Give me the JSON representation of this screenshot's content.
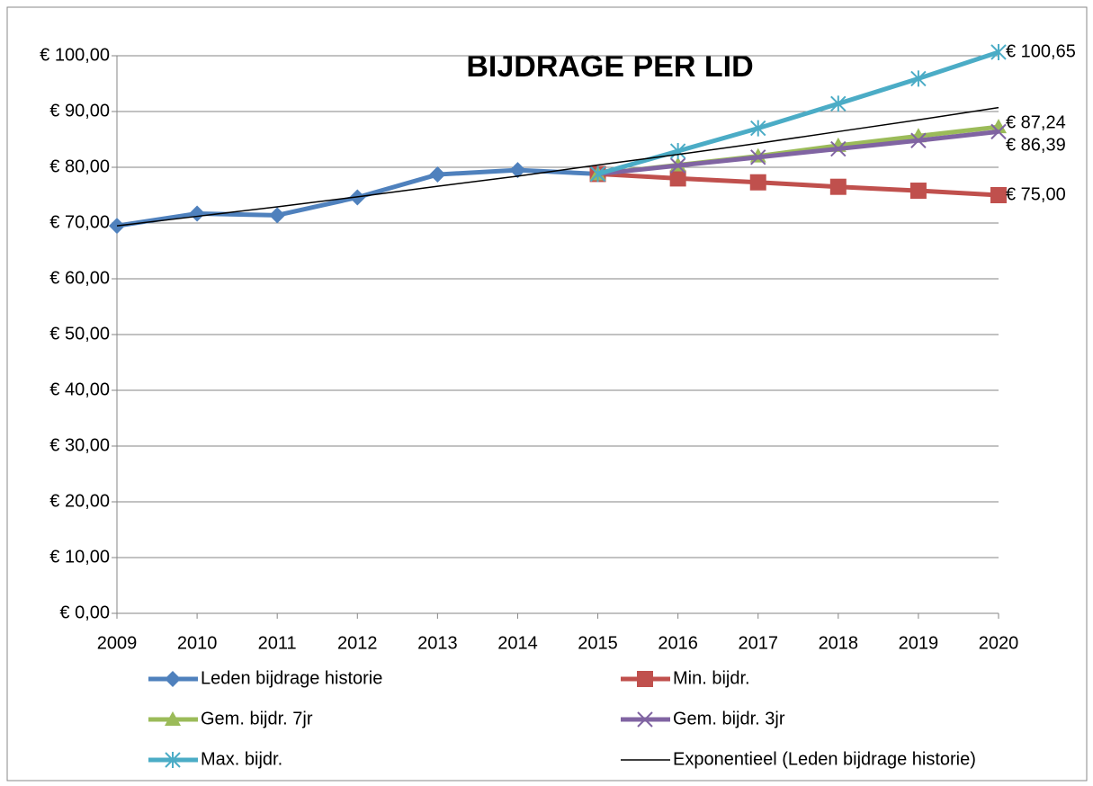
{
  "chart_data": {
    "type": "line",
    "title": "BIJDRAGE PER LID",
    "categories": [
      "2009",
      "2010",
      "2011",
      "2012",
      "2013",
      "2014",
      "2015",
      "2016",
      "2017",
      "2018",
      "2019",
      "2020"
    ],
    "ylim": [
      0,
      100
    ],
    "yticks": [
      {
        "value": 0,
        "label": "€ 0,00"
      },
      {
        "value": 10,
        "label": "€ 10,00"
      },
      {
        "value": 20,
        "label": "€ 20,00"
      },
      {
        "value": 30,
        "label": "€ 30,00"
      },
      {
        "value": 40,
        "label": "€ 40,00"
      },
      {
        "value": 50,
        "label": "€ 50,00"
      },
      {
        "value": 60,
        "label": "€ 60,00"
      },
      {
        "value": 70,
        "label": "€ 70,00"
      },
      {
        "value": 80,
        "label": "€ 80,00"
      },
      {
        "value": 90,
        "label": "€ 90,00"
      },
      {
        "value": 100,
        "label": "€ 100,00"
      }
    ],
    "grid": true,
    "legend": "bottom",
    "series": [
      {
        "name": "Leden bijdrage historie",
        "color": "#4f81bd",
        "marker": "diamond",
        "values": [
          69.5,
          71.7,
          71.4,
          74.6,
          78.7,
          79.5,
          78.8,
          null,
          null,
          null,
          null,
          null
        ]
      },
      {
        "name": "Min. bijdr.",
        "color": "#c0504d",
        "marker": "square",
        "values": [
          null,
          null,
          null,
          null,
          null,
          null,
          78.8,
          78.0,
          77.3,
          76.5,
          75.8,
          75.0
        ],
        "value_labels": [
          null,
          null,
          null,
          null,
          null,
          null,
          null,
          null,
          null,
          null,
          null,
          "€ 75,00"
        ]
      },
      {
        "name": "Gem. bijdr. 7jr",
        "color": "#9bbb59",
        "marker": "triangle",
        "values": [
          null,
          null,
          null,
          null,
          null,
          null,
          78.8,
          80.4,
          82.0,
          83.9,
          85.6,
          87.24
        ],
        "value_labels": [
          null,
          null,
          null,
          null,
          null,
          null,
          null,
          null,
          null,
          null,
          null,
          "€ 87,24"
        ]
      },
      {
        "name": "Gem. bijdr. 3jr",
        "color": "#8064a2",
        "marker": "x",
        "values": [
          null,
          null,
          null,
          null,
          null,
          null,
          78.8,
          80.3,
          81.8,
          83.3,
          84.8,
          86.39
        ],
        "value_labels": [
          null,
          null,
          null,
          null,
          null,
          null,
          null,
          null,
          null,
          null,
          null,
          "€ 86,39"
        ]
      },
      {
        "name": "Max. bijdr.",
        "color": "#4bacc6",
        "marker": "star",
        "values": [
          null,
          null,
          null,
          null,
          null,
          null,
          78.8,
          82.9,
          87.0,
          91.4,
          95.9,
          100.65
        ],
        "value_labels": [
          null,
          null,
          null,
          null,
          null,
          null,
          null,
          null,
          null,
          null,
          null,
          "€ 100,65"
        ]
      },
      {
        "name": "Exponentieel (Leden bijdrage historie)",
        "color": "#000000",
        "marker": "none",
        "values": [
          69.5,
          71.2,
          72.9,
          74.7,
          76.6,
          78.4,
          80.4,
          82.3,
          84.3,
          86.4,
          88.5,
          90.7
        ]
      }
    ]
  }
}
